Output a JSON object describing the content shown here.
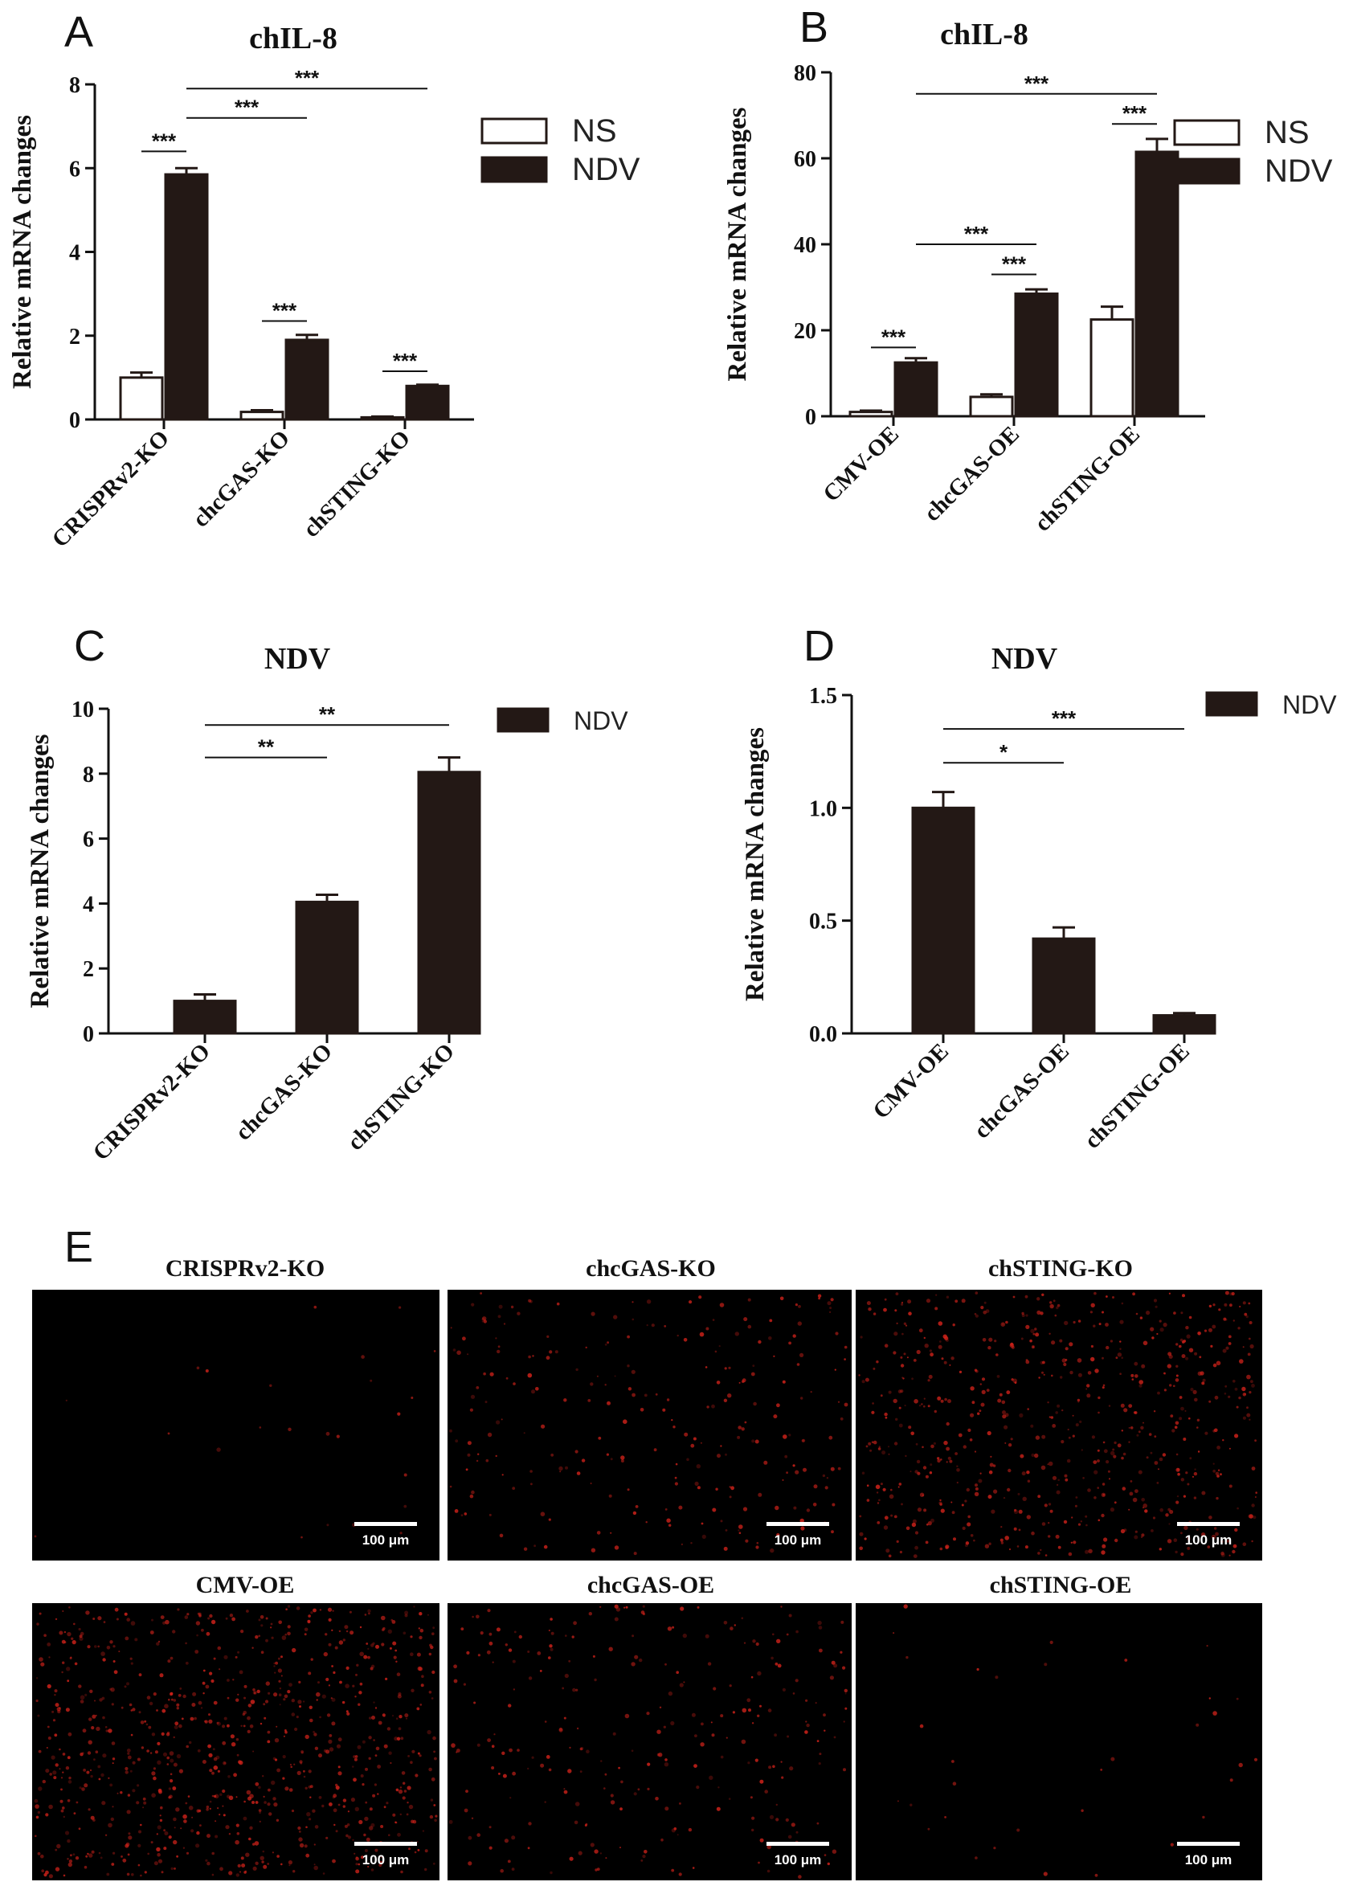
{
  "panels": {
    "A": "A",
    "B": "B",
    "C": "C",
    "D": "D",
    "E": "E"
  },
  "chart_data": [
    {
      "id": "A",
      "type": "bar",
      "title": "chIL-8",
      "ylabel": "Relative mRNA changes",
      "xlabel": "",
      "categories": [
        "CRISPRv2-KO",
        "chcGAS-KO",
        "chSTING-KO"
      ],
      "series": [
        {
          "name": "NS",
          "values": [
            1.0,
            0.18,
            0.05
          ],
          "errors": [
            0.12,
            0.04,
            0.02
          ],
          "color": "#ffffff"
        },
        {
          "name": "NDV",
          "values": [
            5.85,
            1.9,
            0.8
          ],
          "errors": [
            0.15,
            0.12,
            0.03
          ],
          "color": "#231815"
        }
      ],
      "ylim": [
        0,
        8
      ],
      "yticks": [
        0,
        2,
        4,
        6,
        8
      ],
      "ytick_labels": [
        "0",
        "2",
        "4",
        "6",
        "8"
      ],
      "legend": "right",
      "significance": [
        {
          "label": "***",
          "from": [
            0,
            0
          ],
          "to": [
            0,
            1
          ],
          "y": 6.4
        },
        {
          "label": "***",
          "from": [
            1,
            0
          ],
          "to": [
            1,
            1
          ],
          "y": 2.35
        },
        {
          "label": "***",
          "from": [
            2,
            0
          ],
          "to": [
            2,
            1
          ],
          "y": 1.15
        },
        {
          "label": "***",
          "from": [
            0,
            1
          ],
          "to": [
            1,
            1
          ],
          "y": 7.2
        },
        {
          "label": "***",
          "from": [
            0,
            1
          ],
          "to": [
            2,
            1
          ],
          "y": 7.9
        }
      ]
    },
    {
      "id": "B",
      "type": "bar",
      "title": "chIL-8",
      "ylabel": "Relative mRNA changes",
      "xlabel": "",
      "categories": [
        "CMV-OE",
        "chcGAS-OE",
        "chSTING-OE"
      ],
      "series": [
        {
          "name": "NS",
          "values": [
            1.0,
            4.5,
            22.5
          ],
          "errors": [
            0.3,
            0.6,
            3.0
          ],
          "color": "#ffffff"
        },
        {
          "name": "NDV",
          "values": [
            12.5,
            28.5,
            61.5
          ],
          "errors": [
            1.0,
            1.0,
            3.0
          ],
          "color": "#231815"
        }
      ],
      "ylim": [
        0,
        80
      ],
      "yticks": [
        0,
        20,
        40,
        60,
        80
      ],
      "ytick_labels": [
        "0",
        "20",
        "40",
        "60",
        "80"
      ],
      "legend": "right",
      "significance": [
        {
          "label": "***",
          "from": [
            0,
            0
          ],
          "to": [
            0,
            1
          ],
          "y": 16
        },
        {
          "label": "***",
          "from": [
            1,
            0
          ],
          "to": [
            1,
            1
          ],
          "y": 33
        },
        {
          "label": "***",
          "from": [
            2,
            0
          ],
          "to": [
            2,
            1
          ],
          "y": 68
        },
        {
          "label": "***",
          "from": [
            0,
            1
          ],
          "to": [
            1,
            1
          ],
          "y": 40
        },
        {
          "label": "***",
          "from": [
            0,
            1
          ],
          "to": [
            2,
            1
          ],
          "y": 75
        }
      ]
    },
    {
      "id": "C",
      "type": "bar",
      "title": "NDV",
      "ylabel": "Relative mRNA changes",
      "xlabel": "",
      "categories": [
        "CRISPRv2-KO",
        "chcGAS-KO",
        "chSTING-KO"
      ],
      "series": [
        {
          "name": "NDV",
          "values": [
            1.0,
            4.05,
            8.05
          ],
          "errors": [
            0.2,
            0.22,
            0.45
          ],
          "color": "#231815"
        }
      ],
      "ylim": [
        0,
        10
      ],
      "yticks": [
        0,
        2,
        4,
        6,
        8,
        10
      ],
      "ytick_labels": [
        "0",
        "2",
        "4",
        "6",
        "8",
        "10"
      ],
      "legend": "right",
      "significance": [
        {
          "label": "**",
          "from": [
            0,
            0
          ],
          "to": [
            1,
            0
          ],
          "y": 8.5
        },
        {
          "label": "**",
          "from": [
            0,
            0
          ],
          "to": [
            2,
            0
          ],
          "y": 9.5
        }
      ]
    },
    {
      "id": "D",
      "type": "bar",
      "title": "NDV",
      "ylabel": "Relative mRNA changes",
      "xlabel": "",
      "categories": [
        "CMV-OE",
        "chcGAS-OE",
        "chSTING-OE"
      ],
      "series": [
        {
          "name": "NDV",
          "values": [
            1.0,
            0.42,
            0.08
          ],
          "errors": [
            0.07,
            0.05,
            0.01
          ],
          "color": "#231815"
        }
      ],
      "ylim": [
        0,
        1.5
      ],
      "yticks": [
        0,
        0.5,
        1.0,
        1.5
      ],
      "ytick_labels": [
        "0.0",
        "0.5",
        "1.0",
        "1.5"
      ],
      "legend": "right",
      "significance": [
        {
          "label": "*",
          "from": [
            0,
            0
          ],
          "to": [
            1,
            0
          ],
          "y": 1.2
        },
        {
          "label": "***",
          "from": [
            0,
            0
          ],
          "to": [
            2,
            0
          ],
          "y": 1.35
        }
      ]
    }
  ],
  "micrographs": {
    "scale_bar_label": "100 μm",
    "items": [
      {
        "title": "CRISPRv2-KO",
        "signal_level": 0.02
      },
      {
        "title": "chcGAS-KO",
        "signal_level": 0.28
      },
      {
        "title": "chSTING-KO",
        "signal_level": 0.75
      },
      {
        "title": "CMV-OE",
        "signal_level": 0.95
      },
      {
        "title": "chcGAS-OE",
        "signal_level": 0.3
      },
      {
        "title": "chSTING-OE",
        "signal_level": 0.03
      }
    ]
  }
}
